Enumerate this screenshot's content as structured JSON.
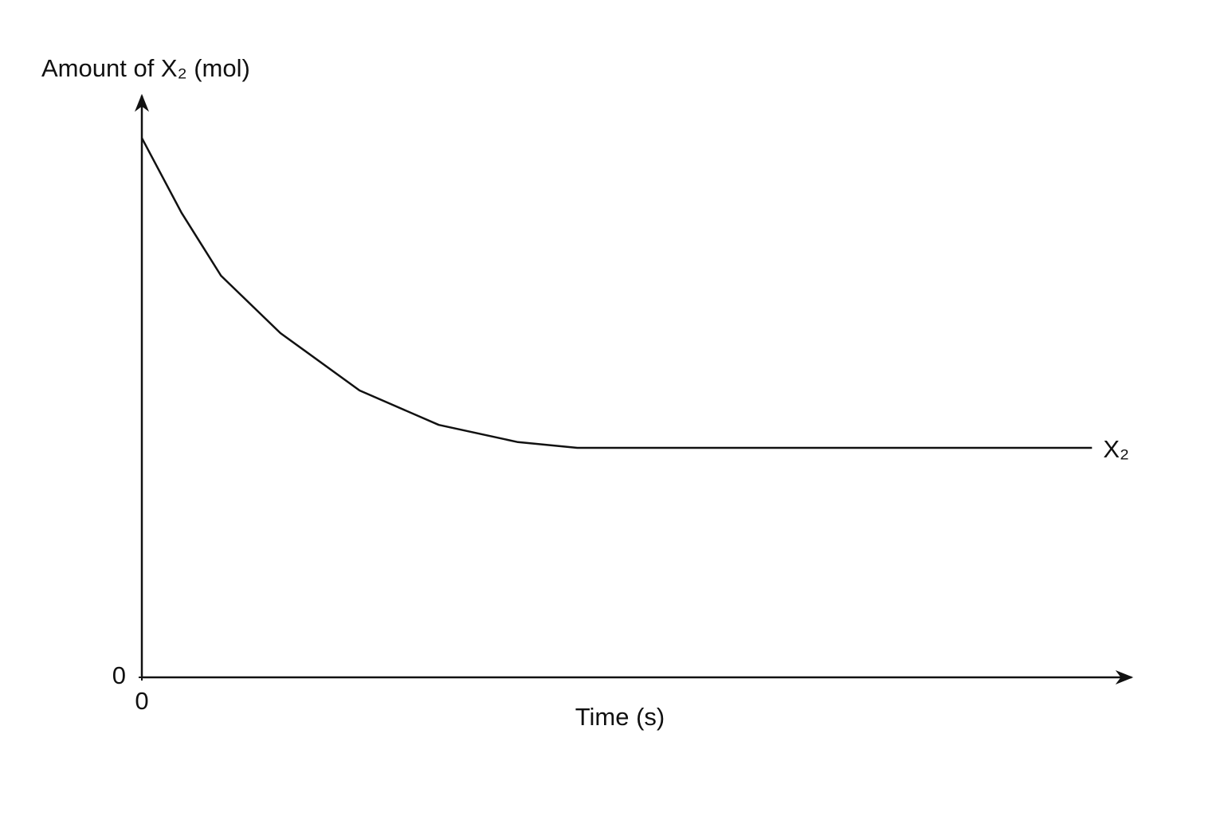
{
  "chart_data": {
    "type": "line",
    "x_label": "Time (s)",
    "y_label": "Amount of X₂ (mol)",
    "x": [
      0,
      4,
      8,
      14,
      22,
      30,
      38,
      44,
      96
    ],
    "series": [
      {
        "name": "X₂",
        "color": "#111111",
        "values": [
          94,
          81,
          70,
          60,
          50,
          44,
          41,
          40,
          40
        ]
      }
    ],
    "xlim": [
      0,
      100
    ],
    "ylim": [
      0,
      100
    ],
    "xticks": [
      0
    ],
    "yticks": [
      0
    ],
    "grid": false
  }
}
